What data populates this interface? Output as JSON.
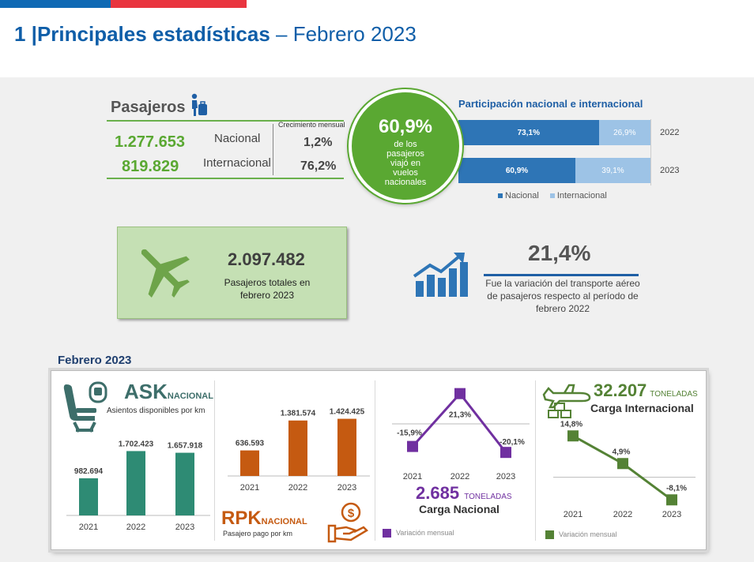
{
  "header": {
    "number": "1 |",
    "title_bold": "Principales estadísticas",
    "title_rest": " – Febrero 2023"
  },
  "colors": {
    "brand_blue": "#0f69b4",
    "brand_red": "#e9353f",
    "green": "#5aa832",
    "teal": "#2e8b74",
    "orange": "#c55a11",
    "purple": "#7030a0",
    "olive_green": "#548235"
  },
  "pasajeros": {
    "title": "Pasajeros",
    "icon": "traveler-icon",
    "crecimiento_header": "Crecimiento mensual",
    "rows": [
      {
        "value": "1.277.653",
        "label": "Nacional",
        "growth": "1,2%"
      },
      {
        "value": "819.829",
        "label": "Internacional",
        "growth": "76,2%"
      }
    ],
    "circle": {
      "pct": "60,9%",
      "text": "de los pasajeros viajó en vuelos nacionales"
    }
  },
  "participacion": {
    "title": "Participación nacional e internacional",
    "legend": [
      "Nacional",
      "Internacional"
    ],
    "rows": [
      {
        "year": "2022",
        "nacional": 73.1,
        "internacional": 26.9,
        "nacional_label": "73,1%",
        "internacional_label": "26,9%"
      },
      {
        "year": "2023",
        "nacional": 60.9,
        "internacional": 39.1,
        "nacional_label": "60,9%",
        "internacional_label": "39,1%"
      }
    ]
  },
  "totales": {
    "icon": "airplane-icon",
    "value": "2.097.482",
    "text": "Pasajeros totales en febrero 2023"
  },
  "variacion": {
    "icon": "growth-chart-icon",
    "value": "21,4%",
    "text": "Fue la variación del transporte aéreo de pasajeros respecto al período de febrero 2022"
  },
  "febrero": {
    "title": "Febrero 2023",
    "ask": {
      "title": "ASK",
      "suffix": "NACIONAL",
      "subtitle": "Asientos disponibles por km",
      "icon": "airplane-seat-icon"
    },
    "rpk": {
      "title": "RPK",
      "suffix": "NACIONAL",
      "subtitle": "Pasajero pago por km",
      "icon": "hand-money-icon"
    },
    "carga_nacional": {
      "value": "2.685",
      "unit": "TONELADAS",
      "label": "Carga Nacional",
      "legend": "Variación mensual"
    },
    "carga_internacional": {
      "value": "32.207",
      "unit": "TONELADAS",
      "label": "Carga Internacional",
      "legend": "Variación mensual",
      "icon": "cargo-plane-icon"
    }
  },
  "chart_data": [
    {
      "type": "bar",
      "title": "Participación nacional e internacional",
      "orientation": "horizontal",
      "stacked": true,
      "categories": [
        "2022",
        "2023"
      ],
      "series": [
        {
          "name": "Nacional",
          "values": [
            73.1,
            60.9
          ]
        },
        {
          "name": "Internacional",
          "values": [
            26.9,
            39.1
          ]
        }
      ],
      "legend": "bottom"
    },
    {
      "type": "bar",
      "title": "ASK NACIONAL",
      "categories": [
        "2021",
        "2022",
        "2023"
      ],
      "values": [
        982694,
        1702423,
        1657918
      ],
      "labels": [
        "982.694",
        "1.702.423",
        "1.657.918"
      ],
      "ylim": [
        0,
        1900000
      ]
    },
    {
      "type": "bar",
      "title": "RPK NACIONAL",
      "categories": [
        "2021",
        "2022",
        "2023"
      ],
      "values": [
        636593,
        1381574,
        1424425
      ],
      "labels": [
        "636.593",
        "1.381.574",
        "1.424.425"
      ],
      "ylim": [
        0,
        1750000
      ]
    },
    {
      "type": "line",
      "title": "Carga Nacional",
      "categories": [
        "2021",
        "2022",
        "2023"
      ],
      "values": [
        -15.9,
        21.3,
        -20.1
      ],
      "labels": [
        "-15,9%",
        "21,3%",
        "-20,1%"
      ],
      "legend": "Variación mensual",
      "ylim": [
        -25,
        25
      ]
    },
    {
      "type": "line",
      "title": "Carga Internacional",
      "categories": [
        "2021",
        "2022",
        "2023"
      ],
      "values": [
        14.8,
        4.9,
        -8.1
      ],
      "labels": [
        "14,8%",
        "4,9%",
        "-8,1%"
      ],
      "legend": "Variación mensual",
      "ylim": [
        -10,
        16
      ]
    }
  ]
}
